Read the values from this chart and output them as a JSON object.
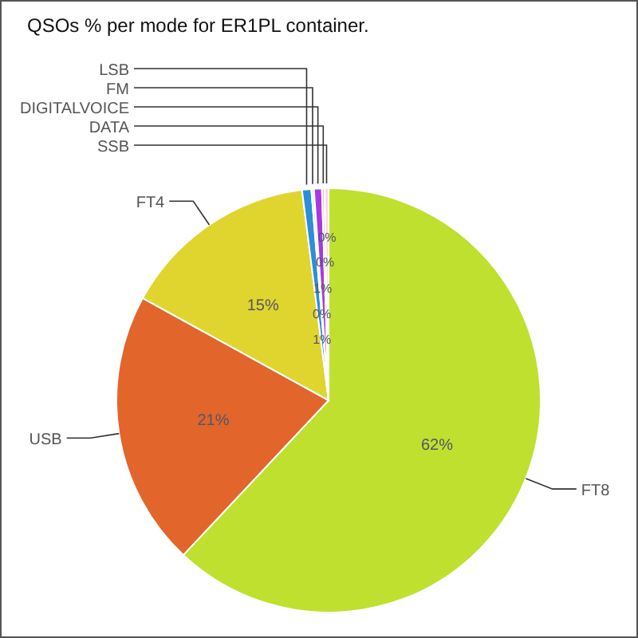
{
  "chart_data": {
    "type": "pie",
    "title": "QSOs % per mode for ER1PL container.",
    "categories": [
      "FT8",
      "USB",
      "FT4",
      "LSB",
      "FM",
      "DIGITALVOICE",
      "DATA",
      "SSB"
    ],
    "values": [
      62,
      21,
      15,
      0.7,
      0.2,
      0.6,
      0.2,
      0.3
    ],
    "colors": [
      "#bfe02f",
      "#e2652c",
      "#e0d52f",
      "#2a8fd8",
      "#e8e8e8",
      "#a33ce0",
      "#f5b8d8",
      "#f8d8e8"
    ],
    "value_labels": [
      "62%",
      "21%",
      "15%",
      "1%",
      "0%",
      "1%",
      "0%",
      "0%"
    ]
  }
}
